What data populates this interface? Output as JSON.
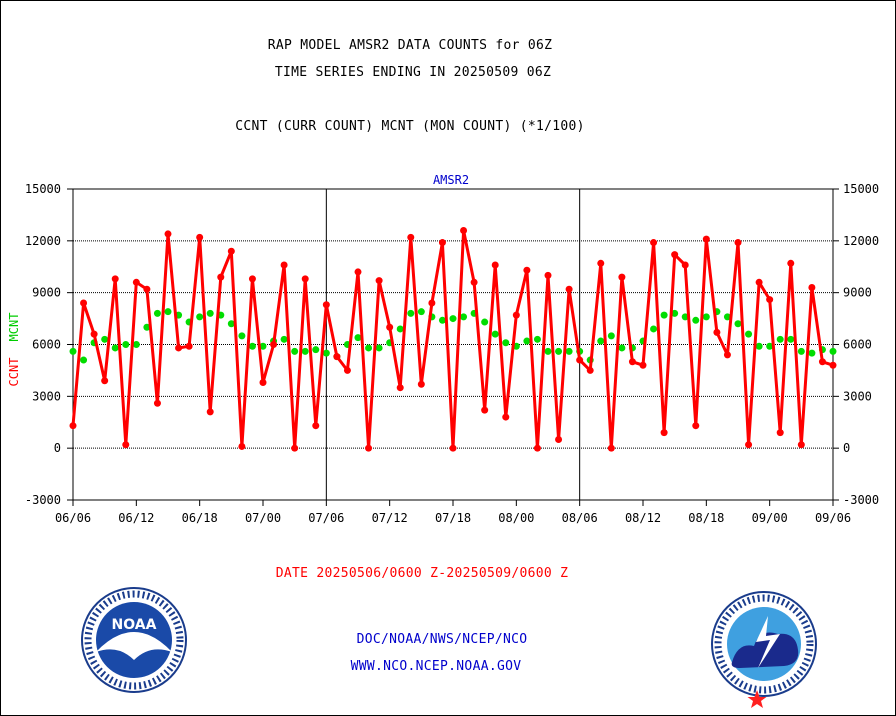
{
  "titles": {
    "line1": "RAP MODEL AMSR2 DATA COUNTS for 06Z",
    "line2": "TIME SERIES ENDING IN 20250509 06Z",
    "line3": "CCNT (CURR COUNT) MCNT (MON COUNT) (*1/100)"
  },
  "date_range": "DATE 20250506/0600 Z-20250509/0600 Z",
  "footer": {
    "line1": "DOC/NOAA/NWS/NCEP/NCO",
    "line2": "WWW.NCO.NCEP.NOAA.GOV"
  },
  "logos": {
    "left": {
      "center_text": "NOAA",
      "ring_text": "NATIONAL OCEANIC AND ATMOSPHERIC ADMINISTRATION · U.S. DEPARTMENT OF COMMERCE"
    },
    "right": {
      "ring_text": "NATIONAL WEATHER SERVICE"
    }
  },
  "colors": {
    "ccnt": "#ff0000",
    "mcnt": "#00dd00",
    "panel_title": "#0000cc",
    "footer": "#0000cc",
    "date": "#ff0000"
  },
  "chart_data": {
    "type": "line",
    "panel_title": "AMSR2",
    "ylabel_ccnt": "CCNT",
    "ylabel_mcnt": "MCNT",
    "ylim": [
      -3000,
      15000
    ],
    "yticks": [
      -3000,
      0,
      3000,
      6000,
      9000,
      12000,
      15000
    ],
    "ytick_labels": [
      "-3000",
      "0",
      "3000",
      "6000",
      "9000",
      "12000",
      "15000"
    ],
    "xtick_labels": [
      "06/06",
      "06/12",
      "06/18",
      "07/00",
      "07/06",
      "07/12",
      "07/18",
      "08/00",
      "08/06",
      "08/12",
      "08/18",
      "09/00",
      "09/06"
    ],
    "grid": true,
    "series": [
      {
        "name": "CCNT",
        "values": [
          1300,
          8400,
          6600,
          3900,
          9800,
          200,
          9600,
          9200,
          2600,
          12400,
          5800,
          5900,
          12200,
          2100,
          9900,
          11400,
          100,
          9800,
          3800,
          6000,
          10600,
          0,
          9800,
          1300,
          8300,
          5300,
          4500,
          10200,
          0,
          9700,
          7000,
          3500,
          12200,
          3700,
          8400,
          11900,
          0,
          12600,
          9600,
          2200,
          10600,
          1800,
          7700,
          10300,
          0,
          10000,
          500,
          9200,
          5100,
          4500,
          10700,
          0,
          9900,
          5000,
          4800,
          11900,
          900,
          11200,
          10600,
          1300,
          12100,
          6700,
          5400,
          11900,
          200,
          9600,
          8600,
          900,
          10700,
          200,
          9300,
          5000,
          4800
        ]
      },
      {
        "name": "MCNT",
        "values": [
          5600,
          5100,
          6100,
          6300,
          5800,
          6000,
          6000,
          7000,
          7800,
          7900,
          7700,
          7300,
          7600,
          7800,
          7700,
          7200,
          6500,
          5900,
          5900,
          6200,
          6300,
          5600,
          5600,
          5700,
          5500,
          5300,
          6000,
          6400,
          5800,
          5800,
          6100,
          6900,
          7800,
          7900,
          7600,
          7400,
          7500,
          7600,
          7800,
          7300,
          6600,
          6100,
          5900,
          6200,
          6300,
          5600,
          5600,
          5600,
          5600,
          5100,
          6200,
          6500,
          5800,
          5800,
          6200,
          6900,
          7700,
          7800,
          7600,
          7400,
          7600,
          7900,
          7600,
          7200,
          6600,
          5900,
          5900,
          6300,
          6300,
          5600,
          5500,
          5700,
          5600
        ]
      }
    ]
  }
}
